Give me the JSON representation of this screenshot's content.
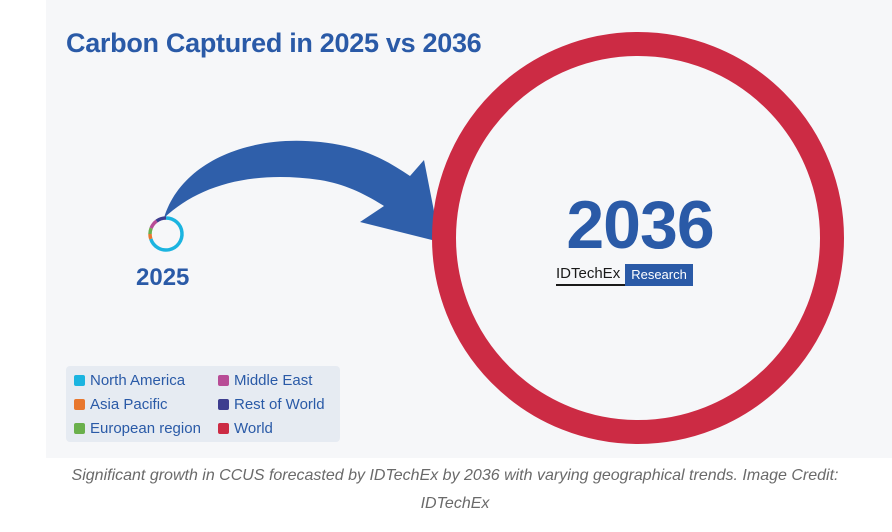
{
  "chart_data": {
    "type": "pie",
    "title": "Carbon Captured in 2025 vs 2036",
    "charts": [
      {
        "label": "2025",
        "shape": "donut",
        "slices": [
          {
            "name": "North America",
            "color": "#1bb4e0",
            "value": 70
          },
          {
            "name": "Asia Pacific",
            "color": "#e8772e",
            "value": 5
          },
          {
            "name": "European region",
            "color": "#6ab04c",
            "value": 6
          },
          {
            "name": "Middle East",
            "color": "#b84c96",
            "value": 9
          },
          {
            "name": "Rest of World",
            "color": "#3d3d8f",
            "value": 10
          }
        ]
      },
      {
        "label": "2036",
        "shape": "donut",
        "slices": [
          {
            "name": "World",
            "color": "#cc2b44",
            "value": 100
          }
        ]
      }
    ],
    "legend": [
      {
        "label": "North America",
        "color": "#1bb4e0"
      },
      {
        "label": "Middle East",
        "color": "#b84c96"
      },
      {
        "label": "Asia Pacific",
        "color": "#e8772e"
      },
      {
        "label": "Rest of World",
        "color": "#3d3d8f"
      },
      {
        "label": "European region",
        "color": "#6ab04c"
      },
      {
        "label": "World",
        "color": "#cc2b44"
      }
    ],
    "legend_position": "bottom-left"
  },
  "branding": {
    "logo_name": "IDTechEx",
    "logo_tag": "Research"
  },
  "caption": "Significant growth in CCUS forecasted by IDTechEx by 2036 with varying geographical trends. Image Credit: IDTechEx",
  "colors": {
    "title": "#2a5aa7",
    "arrow": "#2f5faa",
    "ring_2036": "#cc2b44"
  }
}
